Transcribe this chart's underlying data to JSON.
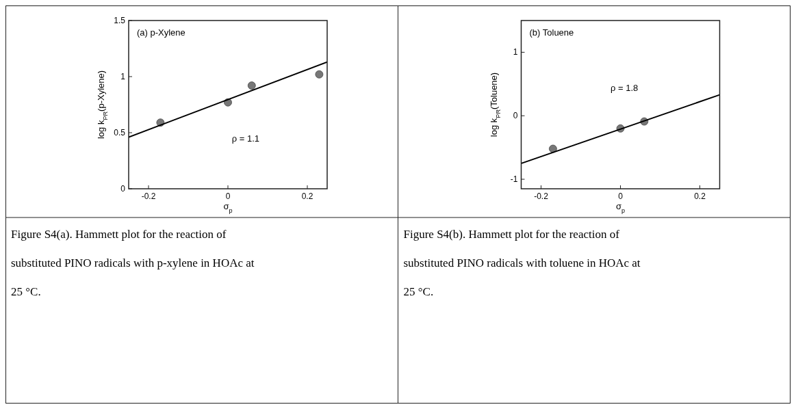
{
  "chart_data": [
    {
      "type": "scatter",
      "title": "(a) p-Xylene",
      "xlabel": "σ$_{p}$",
      "ylabel": "log k$_{PR}$(p-Xylene)",
      "xlim": [
        -0.25,
        0.25
      ],
      "xticks": [
        -0.2,
        0,
        0.2
      ],
      "ylim": [
        0,
        1.5
      ],
      "yticks": [
        0,
        0.5,
        1,
        1.5
      ],
      "series": [
        {
          "color": "#777777",
          "marker": "circle",
          "x": [
            -0.17,
            0,
            0.06,
            0.23
          ],
          "values": [
            0.59,
            0.77,
            0.92,
            1.02
          ]
        },
        {
          "type": "line",
          "color": "#000000",
          "x": [
            -0.25,
            0.25
          ],
          "values": [
            0.46,
            1.13
          ]
        }
      ],
      "annotations": [
        "ρ = 1.1",
        "Figure S4(a). Hammett plot for the reaction of substituted PINO radicals with p-xylene in HOAc at 25 °C."
      ]
    },
    {
      "type": "scatter",
      "title": "(b) Toluene",
      "xlabel": "σ$_{p}$",
      "ylabel": "log k$_{PR}$(Toluene)",
      "xlim": [
        -0.25,
        0.25
      ],
      "xticks": [
        -0.2,
        0,
        0.2
      ],
      "ylim": [
        -1.15,
        1.5
      ],
      "yticks": [
        -1,
        0,
        1
      ],
      "series": [
        {
          "color": "#777777",
          "marker": "circle",
          "x": [
            -0.17,
            0,
            0.06
          ],
          "values": [
            -0.52,
            -0.2,
            -0.09
          ]
        },
        {
          "type": "line",
          "color": "#000000",
          "x": [
            -0.25,
            0.25
          ],
          "values": [
            -0.75,
            0.33
          ]
        }
      ],
      "annotations": [
        "ρ = 1.8",
        "Figure S4(b). Hammett plot for the reaction of substituted PINO radicals with toluene in HOAc at 25 °C."
      ]
    }
  ]
}
